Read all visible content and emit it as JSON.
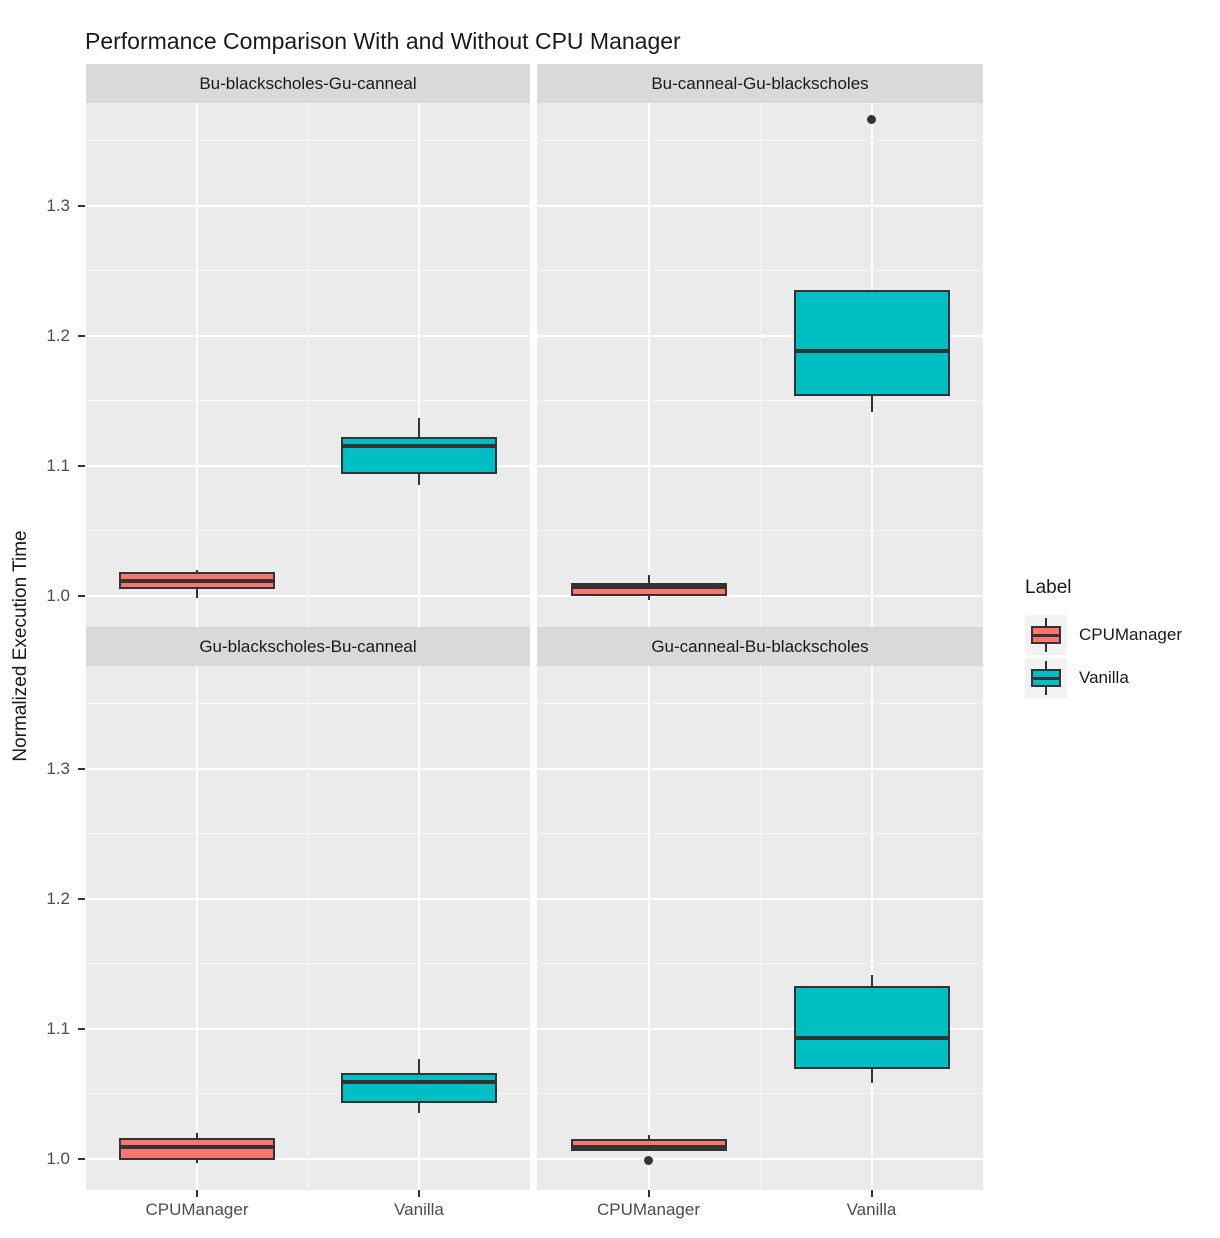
{
  "chart_data": {
    "type": "boxplot",
    "title": "Performance Comparison With and Without CPU Manager",
    "ylabel": "Normalized Execution Time",
    "categories": [
      "CPUManager",
      "Vanilla"
    ],
    "ylim": [
      0.976,
      1.379
    ],
    "y_ticks": [
      {
        "value": 1.0,
        "label": "1.0"
      },
      {
        "value": 1.1,
        "label": "1.1"
      },
      {
        "value": 1.2,
        "label": "1.2"
      },
      {
        "value": 1.3,
        "label": "1.3"
      }
    ],
    "y_minor_ticks": [
      1.05,
      1.15,
      1.25,
      1.35
    ],
    "grid": true,
    "legend": {
      "title": "Label",
      "position": "right",
      "entries": [
        {
          "label": "CPUManager",
          "color": "#F8766D"
        },
        {
          "label": "Vanilla",
          "color": "#00BFC4"
        }
      ]
    },
    "facets": [
      {
        "label": "Bu-blackscholes-Gu-canneal",
        "row": 0,
        "col": 0,
        "boxes": [
          {
            "category": "CPUManager",
            "series": 0,
            "whisker_low": 0.998,
            "q1": 1.005,
            "median": 1.011,
            "q3": 1.018,
            "whisker_high": 1.02,
            "outliers": []
          },
          {
            "category": "Vanilla",
            "series": 1,
            "whisker_low": 1.085,
            "q1": 1.094,
            "median": 1.115,
            "q3": 1.122,
            "whisker_high": 1.137,
            "outliers": []
          }
        ]
      },
      {
        "label": "Bu-canneal-Gu-blackscholes",
        "row": 0,
        "col": 1,
        "boxes": [
          {
            "category": "CPUManager",
            "series": 0,
            "whisker_low": 0.997,
            "q1": 1.0,
            "median": 1.007,
            "q3": 1.01,
            "whisker_high": 1.016,
            "outliers": []
          },
          {
            "category": "Vanilla",
            "series": 1,
            "whisker_low": 1.141,
            "q1": 1.154,
            "median": 1.188,
            "q3": 1.235,
            "whisker_high": 1.235,
            "outliers": [
              1.366
            ]
          }
        ]
      },
      {
        "label": "Gu-blackscholes-Bu-canneal",
        "row": 1,
        "col": 0,
        "boxes": [
          {
            "category": "CPUManager",
            "series": 0,
            "whisker_low": 0.997,
            "q1": 0.999,
            "median": 1.009,
            "q3": 1.016,
            "whisker_high": 1.02,
            "outliers": []
          },
          {
            "category": "Vanilla",
            "series": 1,
            "whisker_low": 1.035,
            "q1": 1.043,
            "median": 1.059,
            "q3": 1.066,
            "whisker_high": 1.077,
            "outliers": []
          }
        ]
      },
      {
        "label": "Gu-canneal-Bu-blackscholes",
        "row": 1,
        "col": 1,
        "boxes": [
          {
            "category": "CPUManager",
            "series": 0,
            "whisker_low": 1.006,
            "q1": 1.006,
            "median": 1.009,
            "q3": 1.015,
            "whisker_high": 1.018,
            "outliers": [
              0.999
            ]
          },
          {
            "category": "Vanilla",
            "series": 1,
            "whisker_low": 1.058,
            "q1": 1.069,
            "median": 1.093,
            "q3": 1.133,
            "whisker_high": 1.141,
            "outliers": []
          }
        ]
      }
    ],
    "colors": {
      "cpumanager_fill": "#F8766D",
      "vanilla_fill": "#00BFC4",
      "stroke": "#333333",
      "panel_bg": "#EBEBEB",
      "strip_bg": "#D9D9D9",
      "gridline": "#FFFFFF",
      "axis_text": "#4D4D4D",
      "legend_key_bg": "#F2F2F2"
    }
  }
}
